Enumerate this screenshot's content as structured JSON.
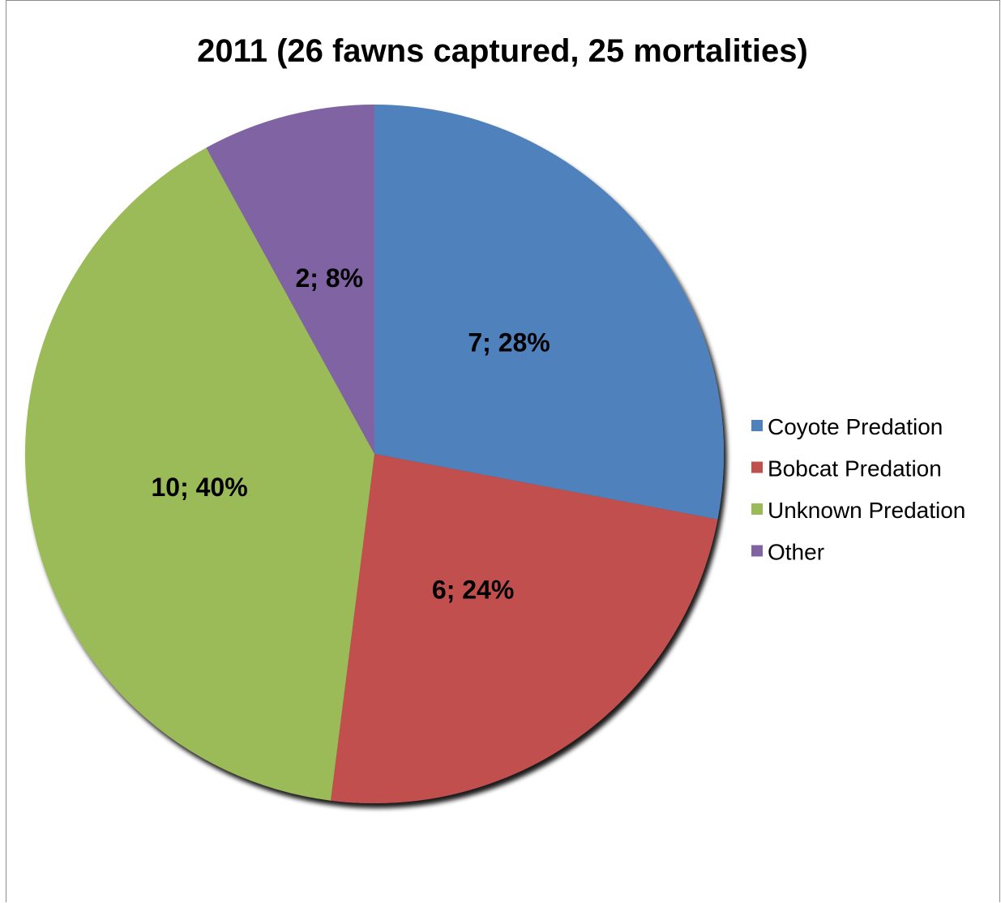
{
  "chart_data": {
    "type": "pie",
    "title": "2011 (26 fawns captured, 25 mortalities)",
    "categories": [
      "Coyote Predation",
      "Bobcat Predation",
      "Unknown Predation",
      "Other"
    ],
    "values": [
      7,
      6,
      10,
      2
    ],
    "percent_labels": [
      "28%",
      "24%",
      "40%",
      "8%"
    ],
    "data_labels": [
      "7; 28%",
      "6; 24%",
      "10; 40%",
      "2; 8%"
    ],
    "colors": [
      "#4F81BD",
      "#C0504D",
      "#9BBB59",
      "#8064A2"
    ],
    "start": "12 o'clock",
    "direction": "clockwise",
    "legend_position": "right"
  }
}
